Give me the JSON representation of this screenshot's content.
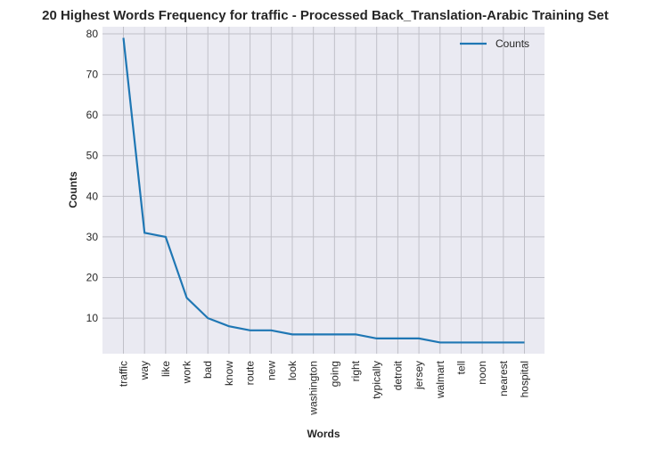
{
  "chart_data": {
    "type": "line",
    "title": "20 Highest Words Frequency for traffic - Processed Back_Translation-Arabic Training Set",
    "xlabel": "Words",
    "ylabel": "Counts",
    "categories": [
      "traffic",
      "way",
      "like",
      "work",
      "bad",
      "know",
      "route",
      "new",
      "look",
      "washington",
      "going",
      "right",
      "typically",
      "detroit",
      "jersey",
      "walmart",
      "tell",
      "noon",
      "nearest",
      "hospital"
    ],
    "series": [
      {
        "name": "Counts",
        "values": [
          79,
          31,
          30,
          15,
          10,
          8,
          7,
          7,
          6,
          6,
          6,
          6,
          5,
          5,
          5,
          4,
          4,
          4,
          4,
          4
        ],
        "color": "#1f77b4"
      }
    ],
    "ylim": [
      1.25,
      81.75
    ],
    "yticks": [
      10,
      20,
      30,
      40,
      50,
      60,
      70,
      80
    ],
    "grid": true,
    "legend": "top-right",
    "background": "#eaeaf2",
    "grid_color": "#c0c0c8"
  }
}
